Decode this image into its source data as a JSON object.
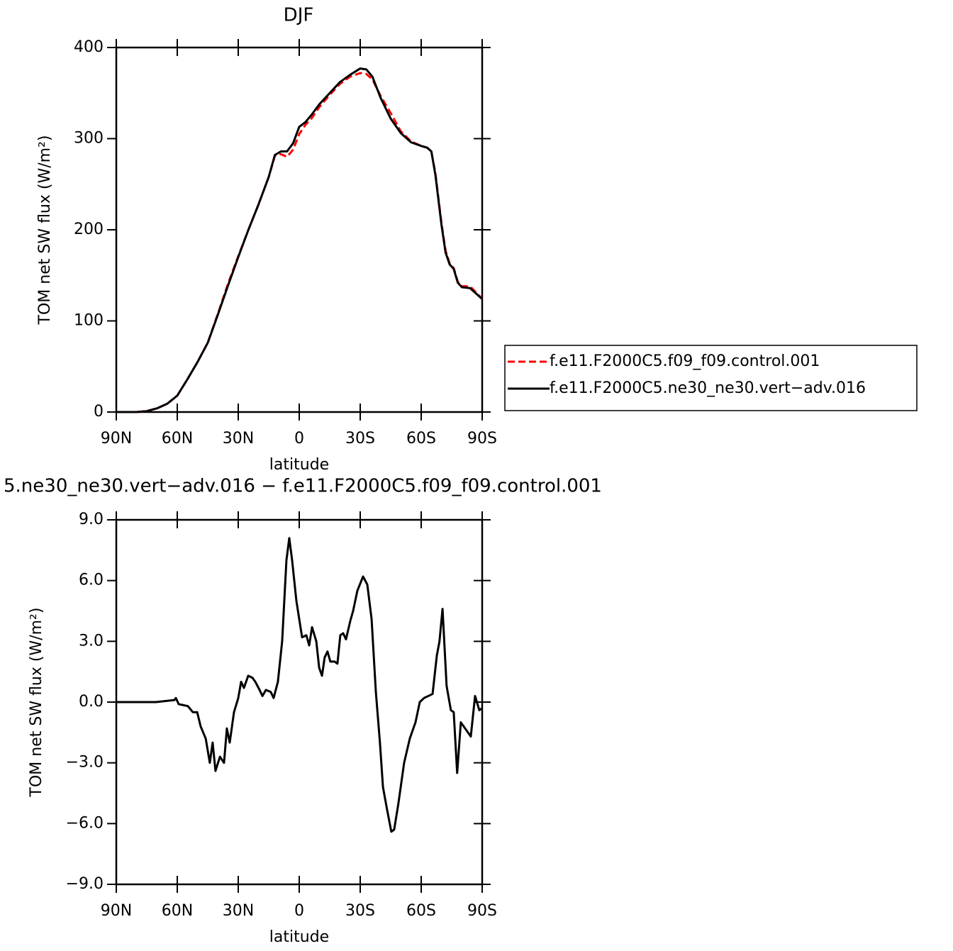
{
  "chart_data": [
    {
      "type": "line",
      "title": "DJF",
      "xlabel": "latitude",
      "ylabel": "TOM net SW flux (W/m²)",
      "x": [
        90,
        85,
        80,
        75,
        70,
        65,
        60,
        55,
        50,
        45,
        40,
        35,
        30,
        25,
        20,
        15,
        12,
        9,
        6,
        3,
        0,
        -3,
        -6,
        -10,
        -15,
        -20,
        -25,
        -30,
        -33,
        -36,
        -40,
        -45,
        -50,
        -55,
        -60,
        -63,
        -65,
        -67,
        -70,
        -72,
        -74,
        -76,
        -78,
        -80,
        -84,
        -88,
        -90
      ],
      "series": [
        {
          "name": "f.e11.F2000C5.f09_f09.control.001",
          "color": "#ff0000",
          "line_style": "dashed",
          "values": [
            0,
            0,
            0,
            1,
            4,
            9,
            18,
            36,
            55,
            76,
            108,
            141,
            171,
            200,
            228,
            258,
            281,
            283,
            280,
            288,
            305,
            315,
            322,
            335,
            348,
            360,
            368,
            372,
            371,
            365,
            347,
            328,
            308,
            297,
            292,
            290,
            286,
            262,
            207,
            177,
            163,
            158,
            143,
            138,
            138,
            129,
            124
          ]
        },
        {
          "name": "f.e11.F2000C5.ne30_ne30.vert−adv.016",
          "color": "#000000",
          "line_style": "solid",
          "values": [
            0,
            0,
            0,
            1,
            4,
            9,
            18,
            36,
            55,
            76,
            107,
            139,
            170,
            200,
            228,
            258,
            282,
            286,
            286,
            295,
            313,
            318,
            326,
            338,
            350,
            362,
            370,
            377,
            376,
            368,
            345,
            322,
            306,
            296,
            292,
            290,
            286,
            260,
            205,
            175,
            162,
            157,
            142,
            137,
            136,
            128,
            124
          ]
        }
      ],
      "xlim": [
        90,
        -90
      ],
      "xticks": [
        {
          "value": 90,
          "label": "90N"
        },
        {
          "value": 60,
          "label": "60N"
        },
        {
          "value": 30,
          "label": "30N"
        },
        0,
        {
          "value": -30,
          "label": "30S"
        },
        {
          "value": -60,
          "label": "60S"
        },
        {
          "value": -90,
          "label": "90S"
        }
      ],
      "ylim": [
        0,
        400
      ],
      "yticks": [
        0,
        100,
        200,
        300,
        400
      ],
      "legend": "right"
    },
    {
      "type": "line",
      "title": "5.ne30_ne30.vert−adv.016 − f.e11.F2000C5.f09_f09.control.001",
      "xlabel": "latitude",
      "ylabel": "TOM net SW flux (W/m²)",
      "x": [
        90,
        70.5,
        61.4,
        60.7,
        59.3,
        54.8,
        52.3,
        50.2,
        48.5,
        46,
        44,
        42.6,
        41.2,
        39,
        37,
        35.6,
        34.2,
        32.1,
        30,
        28.6,
        27.2,
        25.1,
        23,
        21.6,
        19.5,
        18.1,
        16.4,
        14,
        12.6,
        10.5,
        8.4,
        6.3,
        4.9,
        3.5,
        1.4,
        -1.4,
        -3.5,
        -4.9,
        -6.3,
        -8.4,
        -9.8,
        -11.2,
        -12.5,
        -13.9,
        -15.3,
        -17.4,
        -18.8,
        -20.2,
        -21.6,
        -23,
        -25.1,
        -26.5,
        -28.6,
        -31.4,
        -33.5,
        -35.6,
        -37.7,
        -39.7,
        -41.2,
        -43.2,
        -45.3,
        -46.7,
        -48.8,
        -51.6,
        -54.4,
        -57.2,
        -59.3,
        -61.4,
        -63.5,
        -65.6,
        -67.7,
        -69,
        -70.5,
        -72.5,
        -74.6,
        -76,
        -77.7,
        -79.5,
        -81.6,
        -84.4,
        -86.5,
        -88.6,
        -90
      ],
      "series": [
        {
          "color": "#000000",
          "line_style": "solid",
          "values": [
            0,
            0,
            0.1,
            0.2,
            -0.1,
            -0.2,
            -0.5,
            -0.5,
            -1.2,
            -1.8,
            -3.0,
            -2.0,
            -3.4,
            -2.7,
            -3.0,
            -1.3,
            -2.0,
            -0.5,
            0.2,
            1.0,
            0.7,
            1.3,
            1.2,
            1.0,
            0.6,
            0.3,
            0.6,
            0.5,
            0.2,
            1.0,
            3.0,
            7.0,
            8.1,
            7.0,
            5.0,
            3.2,
            3.3,
            2.8,
            3.7,
            3.0,
            1.7,
            1.3,
            2.2,
            2.5,
            2.0,
            2.0,
            1.9,
            3.3,
            3.4,
            3.1,
            4.0,
            4.5,
            5.5,
            6.2,
            5.8,
            4.1,
            0.5,
            -2.0,
            -4.2,
            -5.3,
            -6.4,
            -6.3,
            -5.0,
            -3.0,
            -1.8,
            -1.0,
            0.0,
            0.2,
            0.3,
            0.4,
            2.3,
            3.0,
            4.6,
            0.8,
            -0.4,
            -0.5,
            -3.5,
            -1.0,
            -1.3,
            -1.7,
            0.3,
            -0.4,
            -0.3
          ]
        }
      ],
      "xlim": [
        90,
        -90
      ],
      "xticks": [
        {
          "value": 90,
          "label": "90N"
        },
        {
          "value": 60,
          "label": "60N"
        },
        {
          "value": 30,
          "label": "30N"
        },
        0,
        {
          "value": -30,
          "label": "30S"
        },
        {
          "value": -60,
          "label": "60S"
        },
        {
          "value": -90,
          "label": "90S"
        }
      ],
      "ylim": [
        -9,
        9
      ],
      "yticks": [
        {
          "value": -9,
          "label": "−9.0"
        },
        {
          "value": -6,
          "label": "−6.0"
        },
        {
          "value": -3,
          "label": "−3.0"
        },
        {
          "value": 0,
          "label": "0.0"
        },
        {
          "value": 3,
          "label": "3.0"
        },
        {
          "value": 6,
          "label": "6.0"
        },
        {
          "value": 9,
          "label": "9.0"
        }
      ]
    }
  ]
}
